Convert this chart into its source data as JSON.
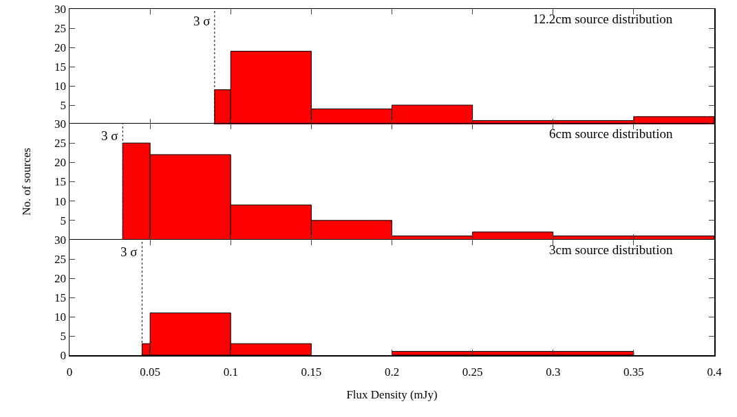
{
  "chart_data": [
    {
      "type": "histogram",
      "bins": [
        0.09,
        0.1,
        0.15,
        0.2,
        0.25,
        0.3,
        0.35,
        0.4
      ],
      "values": [
        9,
        19,
        4,
        5,
        1,
        1,
        2
      ],
      "color": "#ff0000",
      "xlim": [
        0,
        0.4
      ],
      "xticks": [
        0,
        0.05,
        0.1,
        0.15,
        0.2,
        0.25,
        0.3,
        0.35,
        0.4
      ],
      "ylim": [
        0,
        30
      ],
      "yticks": [
        {
          "value": 0,
          "label": null
        },
        5,
        10,
        15,
        20,
        25,
        30
      ],
      "tick_labels": "y",
      "grid": false,
      "legend": false,
      "ref_lines": [
        {
          "axis": "x",
          "value": 0.09,
          "label": "3 σ",
          "color": "#000000",
          "line_style": "dotted"
        }
      ],
      "annotations": [
        "12.2cm source distribution"
      ]
    },
    {
      "type": "histogram",
      "bins": [
        0.033,
        0.05,
        0.1,
        0.15,
        0.2,
        0.25,
        0.3,
        0.35,
        0.4
      ],
      "values": [
        25,
        22,
        9,
        5,
        1,
        2,
        1,
        1
      ],
      "color": "#ff0000",
      "xlim": [
        0,
        0.4
      ],
      "xticks": [
        0,
        0.05,
        0.1,
        0.15,
        0.2,
        0.25,
        0.3,
        0.35,
        0.4
      ],
      "ylim": [
        0,
        30
      ],
      "yticks": [
        {
          "value": 0,
          "label": null
        },
        5,
        10,
        15,
        20,
        25,
        30
      ],
      "tick_labels": "y",
      "grid": false,
      "legend": false,
      "ylabel": "No. of sources",
      "ref_lines": [
        {
          "axis": "x",
          "value": 0.033,
          "label": "3 σ",
          "color": "#000000",
          "line_style": "dotted"
        }
      ],
      "annotations": [
        "6cm source distribution"
      ]
    },
    {
      "type": "histogram",
      "bins": [
        0.045,
        0.05,
        0.1,
        0.15,
        0.2,
        0.25,
        0.3,
        0.35
      ],
      "values": [
        3,
        11,
        3,
        null,
        1,
        1,
        1
      ],
      "color": "#ff0000",
      "xlim": [
        0,
        0.4
      ],
      "xticks": [
        0,
        0.05,
        0.1,
        0.15,
        0.2,
        0.25,
        0.3,
        0.35,
        0.4
      ],
      "ylim": [
        0,
        30
      ],
      "yticks": [
        0,
        5,
        10,
        15,
        20,
        25,
        30
      ],
      "grid": false,
      "legend": false,
      "xlabel": "Flux Density (mJy)",
      "ref_lines": [
        {
          "axis": "x",
          "value": 0.045,
          "label": "3 σ",
          "color": "#000000",
          "line_style": "dotted"
        }
      ],
      "annotations": [
        "3cm source distribution"
      ]
    }
  ]
}
